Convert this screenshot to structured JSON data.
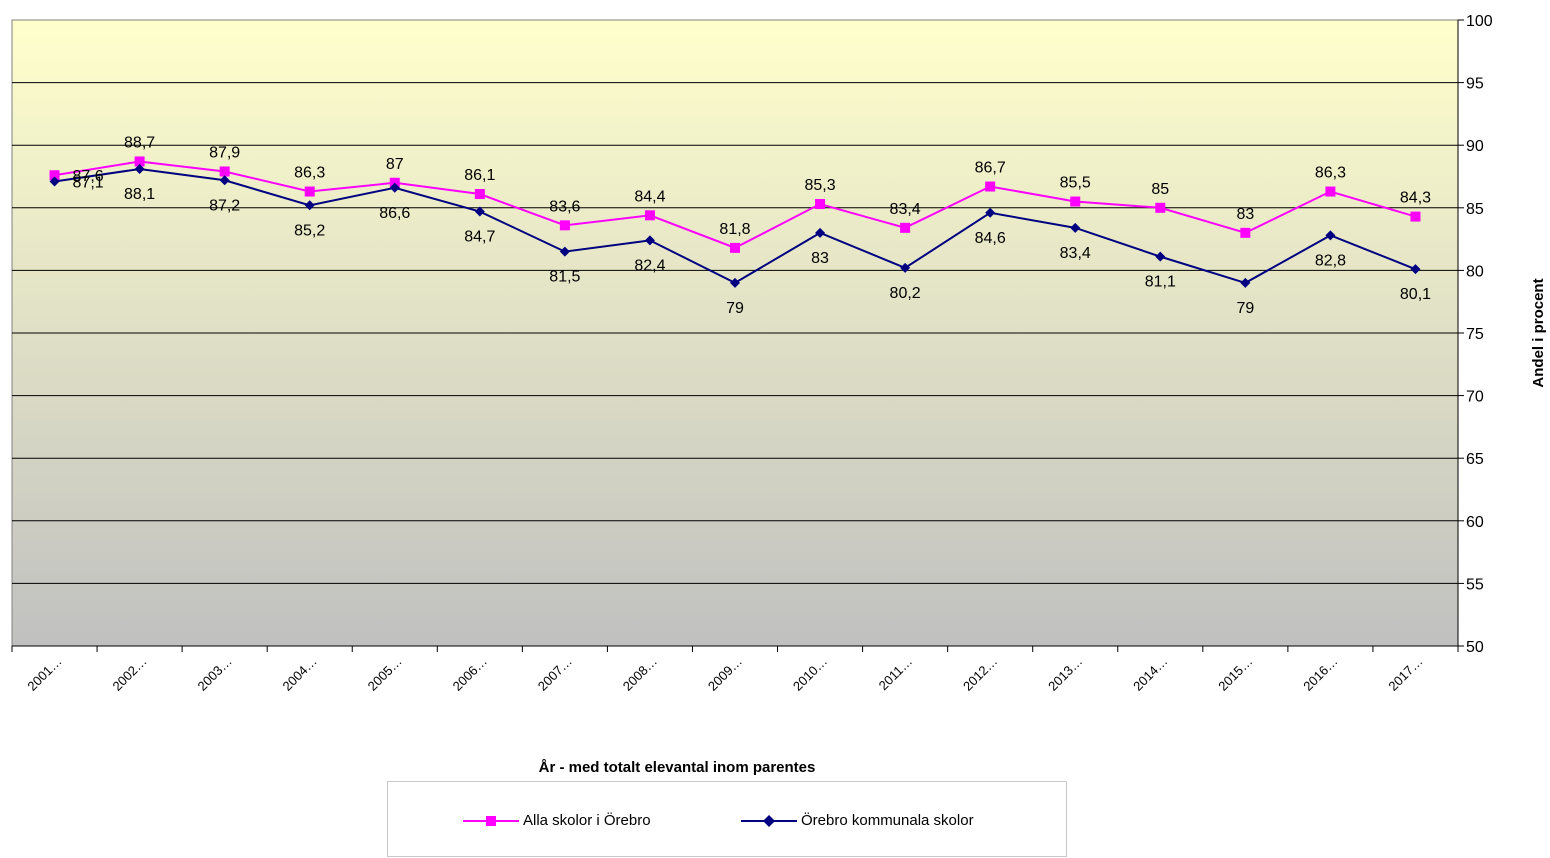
{
  "chart_data": {
    "type": "line",
    "xlabel": "År - med totalt elevantal inom parentes",
    "ylabel": "Andel i procent",
    "ylim": [
      50,
      100
    ],
    "ytick_step": 5,
    "categories": [
      "2001…",
      "2002…",
      "2003…",
      "2004…",
      "2005…",
      "2006…",
      "2007…",
      "2008…",
      "2009…",
      "2010…",
      "2011…",
      "2012…",
      "2013…",
      "2014…",
      "2015…",
      "2016…",
      "2017…"
    ],
    "grid": true,
    "legend_position": "bottom",
    "series": [
      {
        "name": "Alla skolor i Örebro",
        "color": "#ff00ff",
        "marker": "square",
        "values": [
          87.6,
          88.7,
          87.9,
          86.3,
          87,
          86.1,
          83.6,
          84.4,
          81.8,
          85.3,
          83.4,
          86.7,
          85.5,
          85,
          83,
          86.3,
          84.3
        ],
        "labels": [
          "87,6",
          "88,7",
          "87,9",
          "86,3",
          "87",
          "86,1",
          "83,6",
          "84,4",
          "81,8",
          "85,3",
          "83,4",
          "86,7",
          "85,5",
          "85",
          "83",
          "86,3",
          "84,3"
        ]
      },
      {
        "name": "Örebro kommunala skolor",
        "color": "#000080",
        "marker": "diamond",
        "values": [
          87.1,
          88.1,
          87.2,
          85.2,
          86.6,
          84.7,
          81.5,
          82.4,
          79,
          83,
          80.2,
          84.6,
          83.4,
          81.1,
          79,
          82.8,
          80.1
        ],
        "labels": [
          "87,1",
          "88,1",
          "87,2",
          "85,2",
          "86,6",
          "84,7",
          "81,5",
          "82,4",
          "79",
          "83",
          "80,2",
          "84,6",
          "83,4",
          "81,1",
          "79",
          "82,8",
          "80,1"
        ]
      }
    ]
  }
}
